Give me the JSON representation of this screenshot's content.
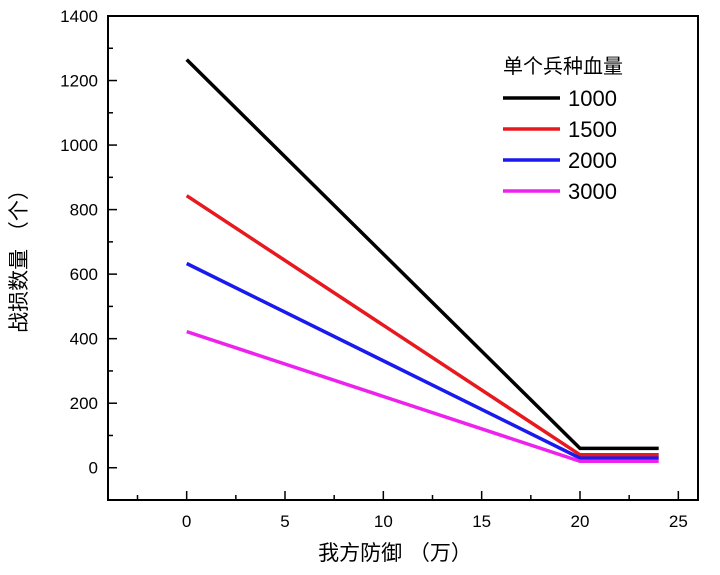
{
  "chart_data": {
    "type": "line",
    "xlabel": "我方防御 （万）",
    "ylabel": "战损数量 （个）",
    "xlim": [
      -4,
      26
    ],
    "ylim": [
      -100,
      1400
    ],
    "xticks": [
      0,
      5,
      10,
      15,
      20,
      25
    ],
    "yticks": [
      0,
      200,
      400,
      600,
      800,
      1000,
      1200,
      1400
    ],
    "x_tick_labels": [
      "0",
      "5",
      "10",
      "15",
      "20",
      "25"
    ],
    "y_tick_labels": [
      "0",
      "200",
      "400",
      "600",
      "800",
      "1000",
      "1200",
      "1400"
    ],
    "legend": {
      "title": "单个兵种血量",
      "placement": "top-right"
    },
    "series": [
      {
        "name": "1000",
        "color": "#000000",
        "points": [
          [
            0,
            1265
          ],
          [
            20,
            60
          ],
          [
            24,
            60
          ]
        ]
      },
      {
        "name": "1500",
        "color": "#e8191e",
        "points": [
          [
            0,
            843
          ],
          [
            20,
            40
          ],
          [
            24,
            40
          ]
        ]
      },
      {
        "name": "2000",
        "color": "#1a1aee",
        "points": [
          [
            0,
            633
          ],
          [
            20,
            30
          ],
          [
            24,
            30
          ]
        ]
      },
      {
        "name": "3000",
        "color": "#ee22ee",
        "points": [
          [
            0,
            422
          ],
          [
            20,
            20
          ],
          [
            24,
            20
          ]
        ]
      }
    ]
  }
}
